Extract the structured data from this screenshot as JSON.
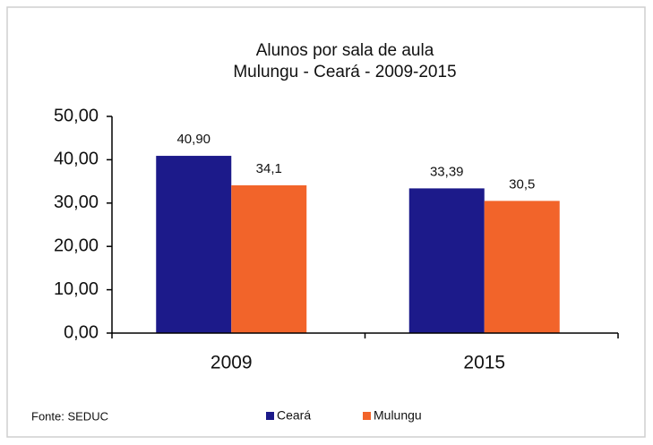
{
  "chart_data": {
    "type": "bar",
    "title": "Alunos por sala de aula",
    "subtitle": "Mulungu - Ceará - 2009-2015",
    "categories": [
      "2009",
      "2015"
    ],
    "series": [
      {
        "name": "Ceará",
        "color": "#1c1a8a",
        "values": [
          40.9,
          33.39
        ],
        "value_labels": [
          "40,90",
          "33,39"
        ]
      },
      {
        "name": "Mulungu",
        "color": "#f2642a",
        "values": [
          34.1,
          30.5
        ],
        "value_labels": [
          "34,1",
          "30,5"
        ]
      }
    ],
    "ylim": [
      0,
      50
    ],
    "yticks": [
      {
        "value": 0,
        "label": "0,00"
      },
      {
        "value": 10,
        "label": "10,00"
      },
      {
        "value": 20,
        "label": "20,00"
      },
      {
        "value": 30,
        "label": "30,00"
      },
      {
        "value": 40,
        "label": "40,00"
      },
      {
        "value": 50,
        "label": "50,00"
      }
    ],
    "grid": false,
    "legend": "bottom",
    "annotations": [
      "Fonte: SEDUC"
    ]
  }
}
